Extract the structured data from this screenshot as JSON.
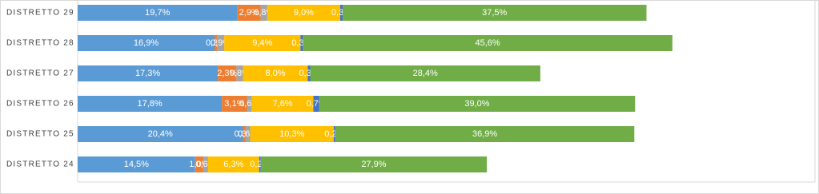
{
  "chart_data": {
    "type": "stacked-bar-horizontal",
    "categories": [
      "DISTRETTO 29",
      "DISTRETTO 28",
      "DISTRETTO 27",
      "DISTRETTO 26",
      "DISTRETTO 25",
      "DISTRETTO 24"
    ],
    "xlim": [
      0,
      91
    ],
    "series": [
      {
        "color": "#5b9bd5",
        "values": [
          19.7,
          16.9,
          17.3,
          17.8,
          20.4,
          14.5
        ],
        "value_labels": [
          "19,7%",
          "16,9%",
          "17,3%",
          "17,8%",
          "20,4%",
          "14,5%"
        ]
      },
      {
        "color": "#ed7d31",
        "values": [
          2.9,
          0.3,
          2.3,
          3.1,
          0.3,
          1.0
        ],
        "value_labels": [
          "2,9%",
          "0,3%",
          "2,3%",
          "3,1%",
          "0,3%",
          "1,0%"
        ]
      },
      {
        "color": "#a5a5a5",
        "values": [
          0.8,
          0.9,
          0.8,
          0.6,
          0.6,
          0.6
        ],
        "value_labels": [
          "0,8%",
          "0,9%",
          "0,8%",
          "0,6%",
          "0,6%",
          "0,6%"
        ]
      },
      {
        "color": "#ffc000",
        "values": [
          9.0,
          9.4,
          8.0,
          7.6,
          10.3,
          6.3
        ],
        "value_labels": [
          "9,0%",
          "9,4%",
          "8,0%",
          "7,6%",
          "10,3%",
          "6,3%"
        ]
      },
      {
        "color": "#4472c4",
        "values": [
          0.3,
          0.3,
          0.3,
          0.7,
          0.2,
          0.2
        ],
        "value_labels": [
          "0,3%",
          "0,3%",
          "0,3%",
          "0,7%",
          "0,2%",
          "0,2%"
        ]
      },
      {
        "color": "#70ad47",
        "values": [
          37.5,
          45.6,
          28.4,
          39.0,
          36.9,
          27.9
        ],
        "value_labels": [
          "37,5%",
          "45,6%",
          "28,4%",
          "39,0%",
          "36,9%",
          "27,9%"
        ]
      }
    ]
  }
}
